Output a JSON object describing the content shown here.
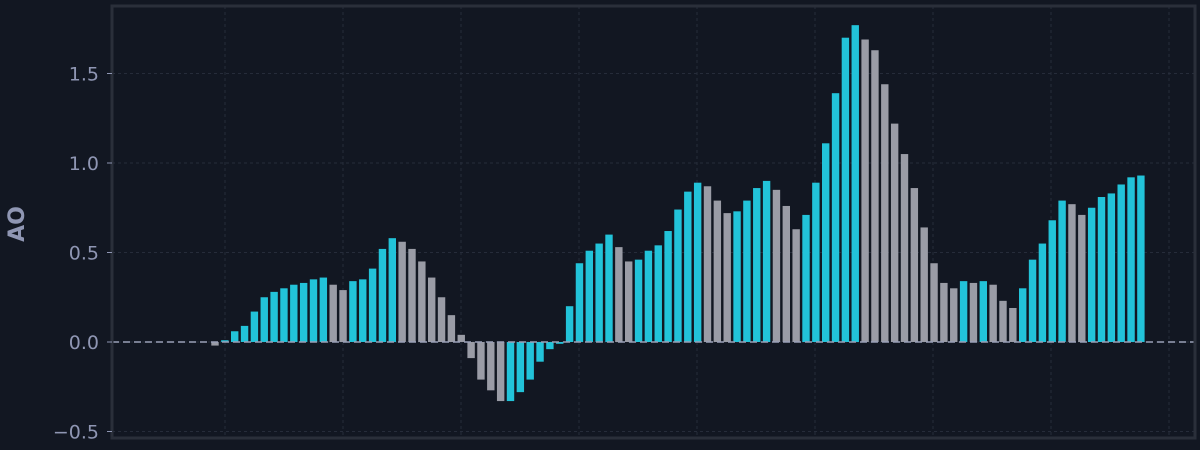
{
  "chart_data": {
    "type": "bar",
    "title": "",
    "xlabel": "",
    "ylabel": "AO",
    "ylim": [
      -0.55,
      1.88
    ],
    "yticks": [
      -0.5,
      0.0,
      0.5,
      1.0,
      1.5
    ],
    "ytick_labels": [
      "−0.5",
      "0.0",
      "0.5",
      "1.0",
      "1.5"
    ],
    "grid": true,
    "zero_line": "dashed",
    "colors": {
      "background": "#121722",
      "rising": "#22c3d9",
      "falling": "#9a9ca6",
      "grid": "#262c3a",
      "frame": "#2a2f3a",
      "zero_line": "#9aa0b8",
      "text": "#8f96b3"
    },
    "series": [
      {
        "values": [
          -0.02,
          0.01,
          0.06,
          0.09,
          0.17,
          0.25,
          0.28,
          0.3,
          0.32,
          0.33,
          0.35,
          0.36,
          0.32,
          0.29,
          0.34,
          0.35,
          0.41,
          0.52,
          0.58,
          0.56,
          0.52,
          0.45,
          0.36,
          0.25,
          0.15,
          0.04,
          -0.09,
          -0.21,
          -0.27,
          -0.33,
          -0.33,
          -0.28,
          -0.21,
          -0.11,
          -0.04,
          -0.01,
          0.2,
          0.44,
          0.51,
          0.55,
          0.6,
          0.53,
          0.45,
          0.46,
          0.51,
          0.54,
          0.62,
          0.74,
          0.84,
          0.89,
          0.87,
          0.79,
          0.72,
          0.73,
          0.79,
          0.86,
          0.9,
          0.85,
          0.76,
          0.63,
          0.71,
          0.89,
          1.11,
          1.39,
          1.7,
          1.77,
          1.69,
          1.63,
          1.44,
          1.22,
          1.05,
          0.86,
          0.64,
          0.44,
          0.33,
          0.3,
          0.34,
          0.33,
          0.34,
          0.32,
          0.23,
          0.19,
          0.3,
          0.46,
          0.55,
          0.68,
          0.79,
          0.77,
          0.71,
          0.75,
          0.81,
          0.83,
          0.88,
          0.92,
          0.93
        ]
      }
    ]
  }
}
